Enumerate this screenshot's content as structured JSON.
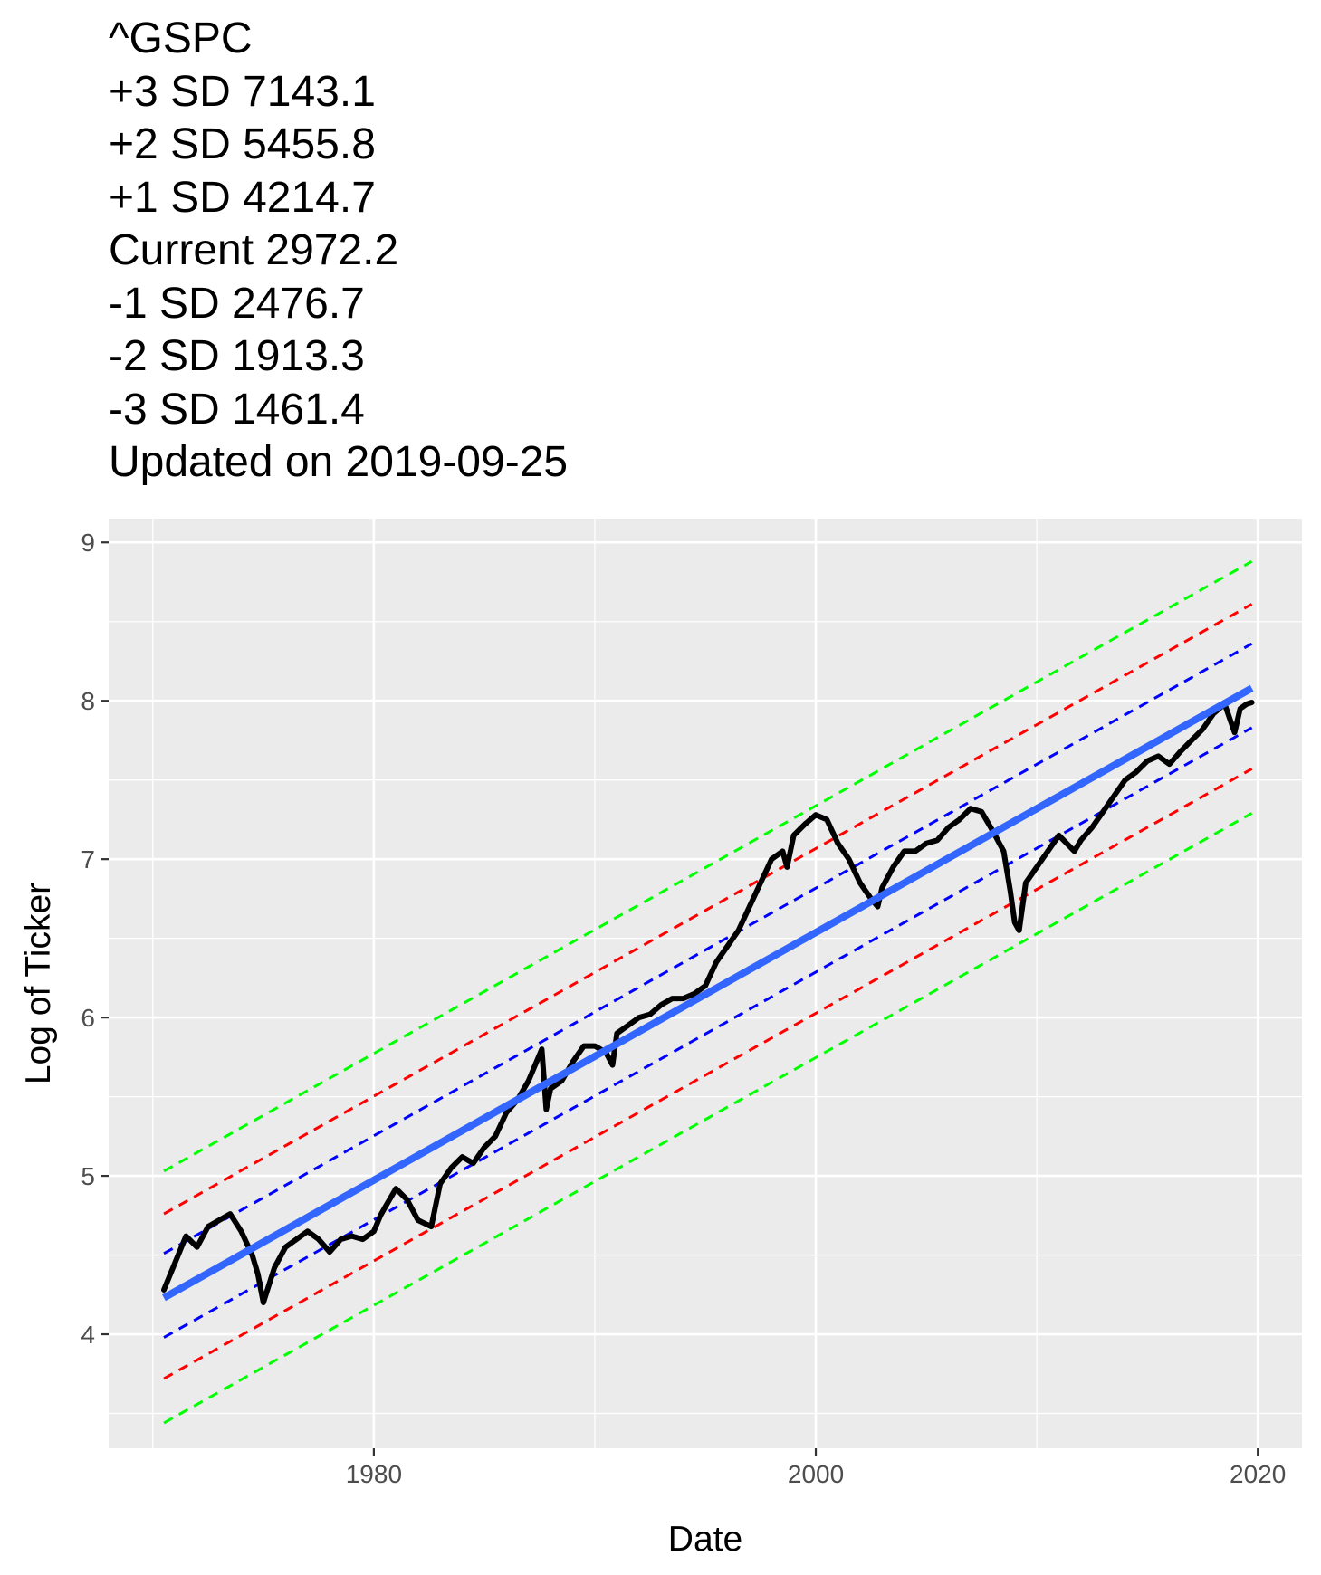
{
  "title_lines": [
    "^GSPC",
    "+3 SD 7143.1",
    "+2 SD 5455.8",
    "+1 SD 4214.7",
    "Current 2972.2",
    "-1 SD 2476.7",
    "-2 SD 1913.3",
    "-3 SD 1461.4",
    "Updated on 2019-09-25"
  ],
  "chart_data": {
    "type": "line",
    "xlabel": "Date",
    "ylabel": "Log of Ticker",
    "xlim": [
      1968.0,
      2022.0
    ],
    "ylim": [
      3.28,
      9.15
    ],
    "x_ticks": [
      1980,
      2000,
      2020
    ],
    "x_tick_labels": [
      "1980",
      "2000",
      "2020"
    ],
    "y_ticks": [
      4,
      5,
      6,
      7,
      8,
      9
    ],
    "y_tick_labels": [
      "4",
      "5",
      "6",
      "7",
      "8",
      "9"
    ],
    "grid": true,
    "panel_background": "#EBEBEB",
    "trend": {
      "x": [
        1970.5,
        2019.73
      ],
      "y": [
        4.23,
        8.08
      ],
      "color": "#3366FF"
    },
    "bands": [
      {
        "offset": 0.28,
        "color": "#0000FF",
        "dash": true
      },
      {
        "offset": 0.53,
        "color": "#FF0000",
        "dash": true
      },
      {
        "offset": 0.8,
        "color": "#00FF00",
        "dash": true
      },
      {
        "offset": -0.25,
        "color": "#0000FF",
        "dash": true
      },
      {
        "offset": -0.51,
        "color": "#FF0000",
        "dash": true
      },
      {
        "offset": -0.79,
        "color": "#00FF00",
        "dash": true
      }
    ],
    "series": [
      {
        "color": "#000000",
        "x": [
          1970.5,
          1971.0,
          1971.5,
          1972.0,
          1972.5,
          1973.0,
          1973.5,
          1974.0,
          1974.5,
          1974.75,
          1975.0,
          1975.5,
          1976.0,
          1976.5,
          1977.0,
          1977.5,
          1978.0,
          1978.5,
          1979.0,
          1979.5,
          1980.0,
          1980.3,
          1980.5,
          1981.0,
          1981.5,
          1982.0,
          1982.6,
          1983.0,
          1983.5,
          1984.0,
          1984.5,
          1985.0,
          1985.5,
          1986.0,
          1986.5,
          1987.0,
          1987.6,
          1987.8,
          1988.0,
          1988.5,
          1989.0,
          1989.5,
          1990.0,
          1990.5,
          1990.8,
          1991.0,
          1991.5,
          1992.0,
          1992.5,
          1993.0,
          1993.5,
          1994.0,
          1994.5,
          1995.0,
          1995.5,
          1996.0,
          1996.5,
          1997.0,
          1997.5,
          1998.0,
          1998.5,
          1998.7,
          1999.0,
          1999.5,
          2000.0,
          2000.5,
          2001.0,
          2001.5,
          2002.0,
          2002.5,
          2002.8,
          2003.0,
          2003.5,
          2004.0,
          2004.5,
          2005.0,
          2005.5,
          2006.0,
          2006.5,
          2007.0,
          2007.5,
          2008.0,
          2008.5,
          2008.8,
          2009.0,
          2009.2,
          2009.5,
          2010.0,
          2010.5,
          2011.0,
          2011.7,
          2012.0,
          2012.5,
          2013.0,
          2013.5,
          2014.0,
          2014.5,
          2015.0,
          2015.5,
          2016.0,
          2016.5,
          2017.0,
          2017.5,
          2018.0,
          2018.5,
          2018.95,
          2019.2,
          2019.5,
          2019.73
        ],
        "y": [
          4.28,
          4.45,
          4.62,
          4.55,
          4.68,
          4.72,
          4.76,
          4.65,
          4.5,
          4.38,
          4.2,
          4.42,
          4.55,
          4.6,
          4.65,
          4.6,
          4.52,
          4.6,
          4.62,
          4.6,
          4.65,
          4.75,
          4.8,
          4.92,
          4.85,
          4.72,
          4.68,
          4.95,
          5.05,
          5.12,
          5.08,
          5.18,
          5.25,
          5.4,
          5.48,
          5.6,
          5.8,
          5.42,
          5.55,
          5.6,
          5.72,
          5.82,
          5.82,
          5.78,
          5.7,
          5.9,
          5.95,
          6.0,
          6.02,
          6.08,
          6.12,
          6.12,
          6.15,
          6.2,
          6.35,
          6.45,
          6.55,
          6.7,
          6.85,
          7.0,
          7.05,
          6.95,
          7.15,
          7.22,
          7.28,
          7.25,
          7.1,
          7.0,
          6.85,
          6.75,
          6.7,
          6.82,
          6.95,
          7.05,
          7.05,
          7.1,
          7.12,
          7.2,
          7.25,
          7.32,
          7.3,
          7.18,
          7.05,
          6.8,
          6.6,
          6.55,
          6.85,
          6.95,
          7.05,
          7.15,
          7.05,
          7.12,
          7.2,
          7.3,
          7.4,
          7.5,
          7.55,
          7.62,
          7.65,
          7.6,
          7.68,
          7.75,
          7.82,
          7.92,
          7.98,
          7.8,
          7.95,
          7.98,
          7.99
        ]
      }
    ]
  }
}
